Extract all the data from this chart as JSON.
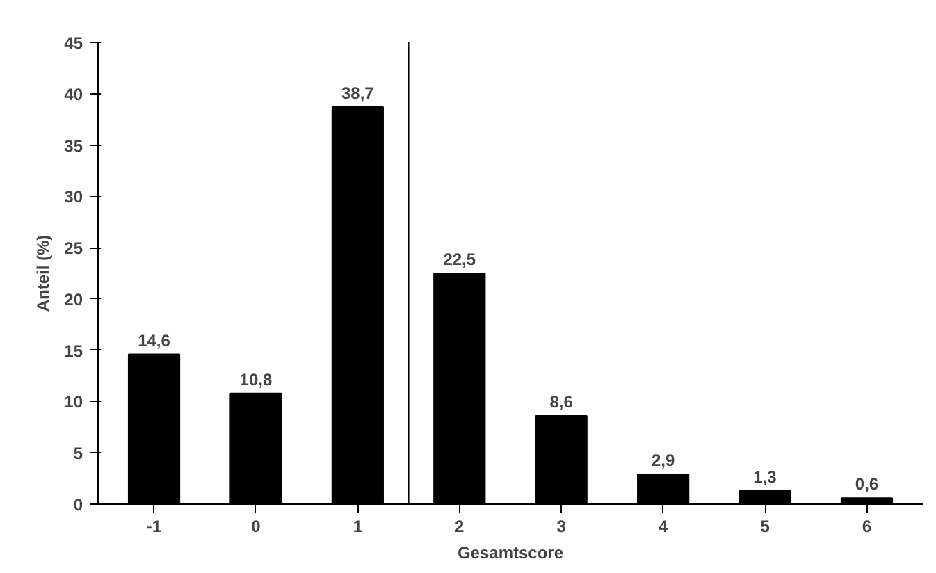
{
  "chart_data": {
    "type": "bar",
    "x": [
      -1,
      0,
      1,
      2,
      3,
      4,
      5,
      6
    ],
    "values": [
      14.6,
      10.8,
      38.7,
      22.5,
      8.6,
      2.9,
      1.3,
      0.6
    ],
    "value_labels": [
      "14,6",
      "10,8",
      "38,7",
      "22,5",
      "8,6",
      "2,9",
      "1,3",
      "0,6"
    ],
    "color": "#000000",
    "xlabel": "Gesamtscore",
    "ylabel": "Anteil (%)",
    "xlim": [
      -1.55,
      6.55
    ],
    "xticks": [
      -1,
      0,
      1,
      2,
      3,
      4,
      5,
      6
    ],
    "ylim": [
      0,
      45
    ],
    "yticks": [
      0,
      5,
      10,
      15,
      20,
      25,
      30,
      35,
      40,
      45
    ],
    "ref_lines": [
      {
        "axis": "x",
        "value": 1.5,
        "label": null,
        "color": "#000000"
      }
    ],
    "grid": false
  }
}
